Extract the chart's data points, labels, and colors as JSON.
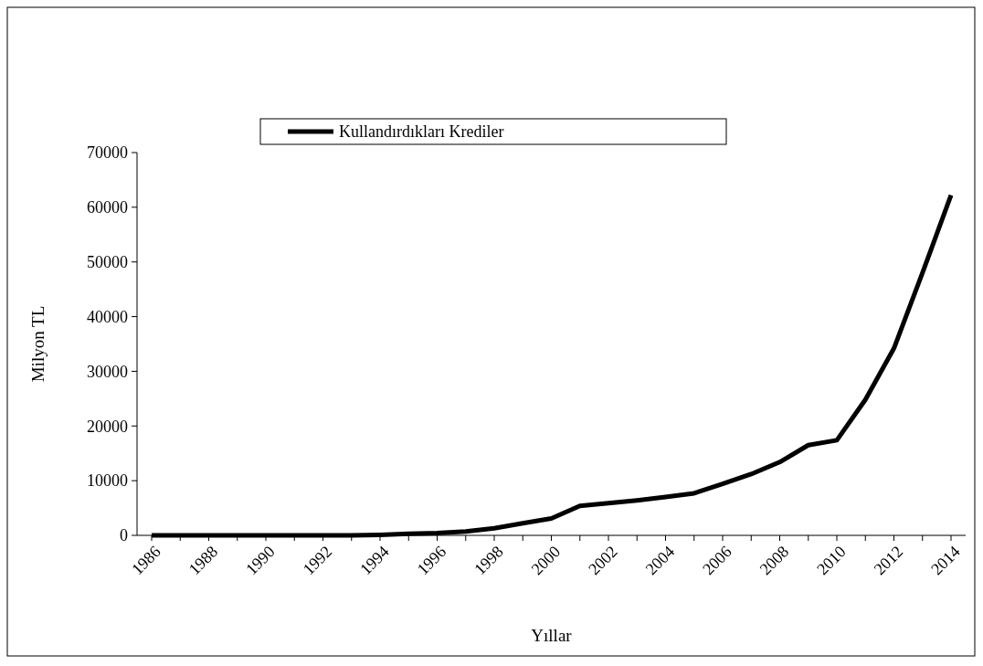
{
  "chart_data": {
    "type": "line",
    "xlabel": "Yıllar",
    "ylabel": "Milyon TL",
    "categories": [
      "1986",
      null,
      "1988",
      null,
      "1990",
      null,
      "1992",
      null,
      "1994",
      null,
      "1996",
      null,
      "1998",
      null,
      "2000",
      null,
      "2002",
      null,
      "2004",
      null,
      "2006",
      null,
      "2008",
      null,
      "2010",
      null,
      "2012",
      null,
      "2014"
    ],
    "series": [
      {
        "name": "Kullandırdıkları Krediler",
        "color": "#000000",
        "values": [
          0,
          0,
          0,
          0,
          0,
          0,
          0,
          0,
          100,
          300,
          400,
          700,
          1300,
          2200,
          3100,
          5400,
          5900,
          6400,
          7000,
          7700,
          9400,
          11200,
          13400,
          16500,
          17400,
          24800,
          34200,
          48000,
          62200
        ]
      }
    ],
    "ylim": [
      0,
      70000
    ],
    "yticks": [
      0,
      10000,
      20000,
      30000,
      40000,
      50000,
      60000,
      70000
    ],
    "legend": "top",
    "grid": false,
    "line_style": "solid"
  }
}
